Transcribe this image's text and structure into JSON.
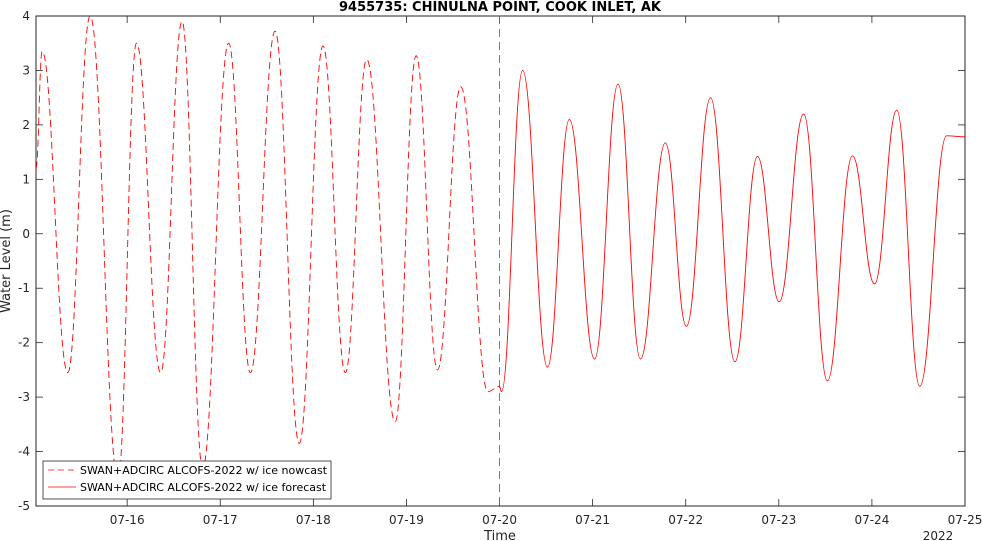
{
  "chart_data": {
    "type": "line",
    "title": "9455735: CHINULNA POINT, COOK INLET, AK",
    "xlabel": "Time",
    "ylabel": "Water Level (m)",
    "year_label": "2022",
    "ylim": [
      -5,
      4
    ],
    "xlim": [
      "2022-07-15 00:30",
      "2022-07-25 00:00"
    ],
    "yticks": [
      -5,
      -4,
      -3,
      -2,
      -1,
      0,
      1,
      2,
      3,
      4
    ],
    "xticks": [
      "07-16",
      "07-17",
      "07-18",
      "07-19",
      "07-20",
      "07-21",
      "07-22",
      "07-23",
      "07-24",
      "07-25"
    ],
    "grid": false,
    "legend_position": "bottom-left",
    "nowcast_forecast_boundary": "2022-07-20 00:00",
    "series": [
      {
        "name": "SWAN+ADCIRC ALCOFS-2022 w/ ice nowcast",
        "color": "#ff0000",
        "style": "dashed",
        "x": [
          "2022-07-15 00:30",
          "2022-07-15 02:05",
          "2022-07-15 08:42",
          "2022-07-15 14:27",
          "2022-07-15 21:39",
          "2022-07-16 02:24",
          "2022-07-16 08:38",
          "2022-07-16 14:09",
          "2022-07-16 19:27",
          "2022-07-17 02:10",
          "2022-07-17 07:46",
          "2022-07-17 14:08",
          "2022-07-17 20:22",
          "2022-07-18 02:29",
          "2022-07-18 08:15",
          "2022-07-18 13:45",
          "2022-07-18 21:06",
          "2022-07-19 02:30",
          "2022-07-19 08:00",
          "2022-07-19 14:00",
          "2022-07-19 21:00",
          "2022-07-20 00:00"
        ],
        "y": [
          1.2,
          3.35,
          -2.55,
          4.0,
          -4.5,
          3.5,
          -2.55,
          3.9,
          -4.3,
          3.5,
          -2.55,
          3.72,
          -3.85,
          3.45,
          -2.55,
          3.2,
          -3.45,
          3.27,
          -2.5,
          2.7,
          -2.9,
          -2.8
        ]
      },
      {
        "name": "SWAN+ADCIRC ALCOFS-2022 w/ ice forecast",
        "color": "#ff0000",
        "style": "solid",
        "x": [
          "2022-07-20 00:00",
          "2022-07-20 00:30",
          "2022-07-20 05:57",
          "2022-07-20 12:22",
          "2022-07-20 18:00",
          "2022-07-21 00:30",
          "2022-07-21 06:33",
          "2022-07-21 12:20",
          "2022-07-21 18:45",
          "2022-07-22 00:10",
          "2022-07-22 06:24",
          "2022-07-22 12:41",
          "2022-07-22 18:30",
          "2022-07-23 00:05",
          "2022-07-23 06:24",
          "2022-07-23 12:31",
          "2022-07-23 19:00",
          "2022-07-24 00:40",
          "2022-07-24 06:24",
          "2022-07-24 12:20",
          "2022-07-24 19:15",
          "2022-07-25 00:00"
        ],
        "y": [
          -2.8,
          -2.9,
          3.0,
          -2.45,
          2.1,
          -2.3,
          2.75,
          -2.3,
          1.67,
          -1.7,
          2.5,
          -2.35,
          1.42,
          -1.25,
          2.2,
          -2.7,
          1.43,
          -0.92,
          2.27,
          -2.8,
          1.8,
          1.78
        ]
      }
    ]
  }
}
